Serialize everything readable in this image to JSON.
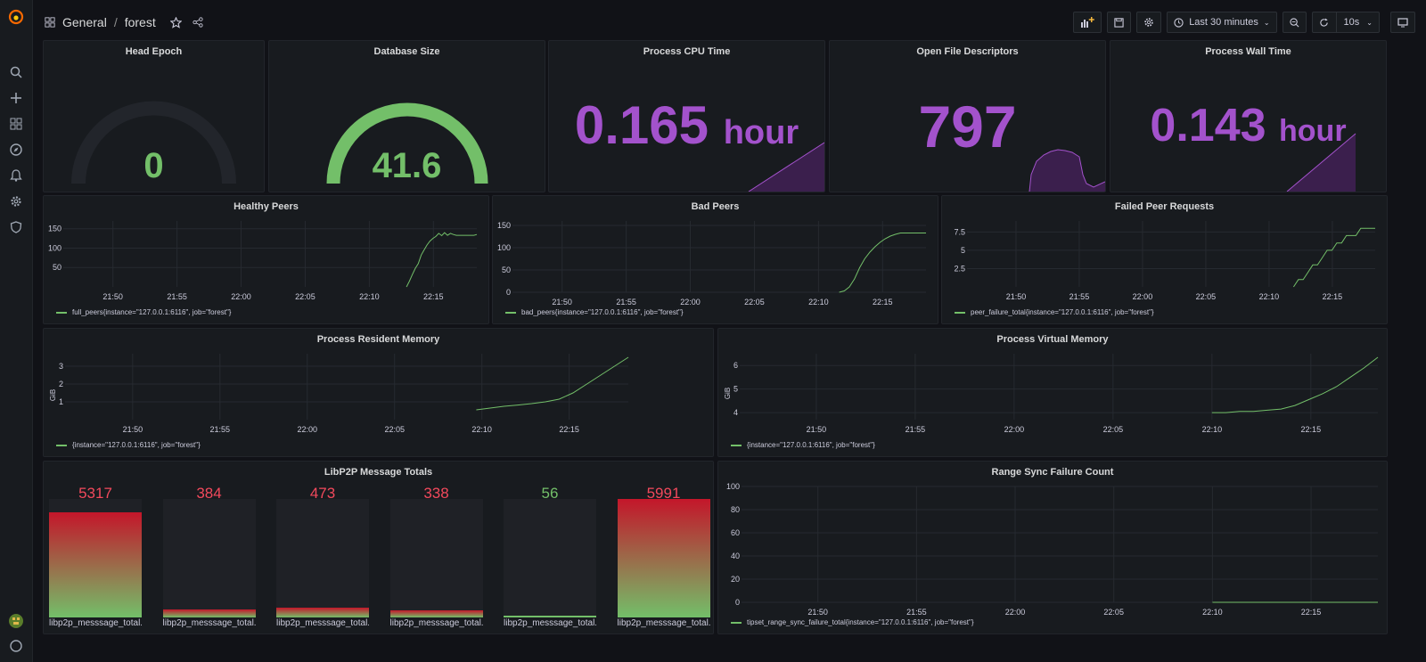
{
  "breadcrumb": {
    "folder": "General",
    "dashboard": "forest",
    "separator": "/"
  },
  "toolbar": {
    "time_range": "Last 30 minutes",
    "refresh": "10s"
  },
  "sidebar": {
    "items": [
      "search-icon",
      "plus-icon",
      "dashboards-icon",
      "explore-icon",
      "alerting-icon",
      "config-icon",
      "shield-icon"
    ]
  },
  "panels": {
    "head_epoch": {
      "title": "Head Epoch",
      "value": "0"
    },
    "database_size": {
      "title": "Database Size",
      "value": "41.6",
      "gauge_fraction": 0.95
    },
    "cpu_time": {
      "title": "Process CPU Time",
      "value": "0.165",
      "unit": "hour"
    },
    "open_fds": {
      "title": "Open File Descriptors",
      "value": "797"
    },
    "wall_time": {
      "title": "Process Wall Time",
      "value": "0.143",
      "unit": "hour"
    },
    "healthy_peers": {
      "title": "Healthy Peers",
      "legend": "full_peers{instance=\"127.0.0.1:6116\", job=\"forest\"}"
    },
    "bad_peers": {
      "title": "Bad Peers",
      "legend": "bad_peers{instance=\"127.0.0.1:6116\", job=\"forest\"}"
    },
    "failed_peer_requests": {
      "title": "Failed Peer Requests",
      "legend": "peer_failure_total{instance=\"127.0.0.1:6116\", job=\"forest\"}"
    },
    "resident_memory": {
      "title": "Process Resident Memory",
      "legend": "{instance=\"127.0.0.1:6116\", job=\"forest\"}",
      "ylabel": "GiB"
    },
    "virtual_memory": {
      "title": "Process Virtual Memory",
      "legend": "{instance=\"127.0.0.1:6116\", job=\"forest\"}",
      "ylabel": "GiB"
    },
    "libp2p": {
      "title": "LibP2P Message Totals"
    },
    "range_sync": {
      "title": "Range Sync Failure Count",
      "legend": "tipset_range_sync_failure_total{instance=\"127.0.0.1:6116\", job=\"forest\"}"
    }
  },
  "chart_data": [
    {
      "id": "healthy_peers",
      "type": "line",
      "x_ticks": [
        "21:50",
        "21:55",
        "22:00",
        "22:05",
        "22:10",
        "22:15"
      ],
      "y_ticks": [
        50,
        100,
        150
      ],
      "ylim": [
        0,
        170
      ],
      "color": "#73bf69",
      "x": [
        0,
        1,
        2,
        3,
        4,
        5,
        6,
        7,
        8,
        9,
        10,
        11,
        12,
        13,
        14,
        15,
        16,
        17,
        18,
        19,
        20,
        21,
        22,
        23,
        24
      ],
      "y": [
        0,
        15,
        32,
        48,
        60,
        82,
        95,
        108,
        118,
        125,
        130,
        138,
        132,
        140,
        133,
        138,
        135,
        133,
        133,
        133,
        133,
        133,
        133,
        133,
        135
      ],
      "x_start": 0.83,
      "x_end": 1.0
    },
    {
      "id": "bad_peers",
      "type": "line",
      "x_ticks": [
        "21:50",
        "21:55",
        "22:00",
        "22:05",
        "22:10",
        "22:15"
      ],
      "y_ticks": [
        0,
        50,
        100,
        150
      ],
      "ylim": [
        0,
        160
      ],
      "color": "#73bf69",
      "x": [
        0,
        1,
        2,
        3,
        4,
        5,
        6,
        7,
        8,
        9,
        10,
        11,
        12,
        13,
        14,
        15,
        16,
        17
      ],
      "y": [
        0,
        3,
        12,
        30,
        55,
        75,
        90,
        102,
        112,
        120,
        126,
        130,
        133,
        133,
        133,
        133,
        133,
        133
      ],
      "x_start": 0.79,
      "x_end": 1.0
    },
    {
      "id": "failed_peer_requests",
      "type": "line",
      "x_ticks": [
        "21:50",
        "21:55",
        "22:00",
        "22:05",
        "22:10",
        "22:15"
      ],
      "y_ticks": [
        2.5,
        5,
        7.5
      ],
      "ylim": [
        0,
        9
      ],
      "color": "#73bf69",
      "x": [
        0,
        1,
        2,
        3,
        4,
        5,
        6,
        7,
        8,
        9,
        10,
        11,
        12,
        13,
        14,
        15,
        16,
        17
      ],
      "y": [
        0,
        1,
        1,
        2,
        3,
        3,
        4,
        5,
        5,
        6,
        6,
        7,
        7,
        7,
        8,
        8,
        8,
        8
      ],
      "x_start": 0.8,
      "x_end": 1.0
    },
    {
      "id": "resident_memory",
      "type": "line",
      "x_ticks": [
        "21:50",
        "21:55",
        "22:00",
        "22:05",
        "22:10",
        "22:15"
      ],
      "y_ticks": [
        1,
        2,
        3
      ],
      "ylim": [
        0,
        3.7
      ],
      "color": "#73bf69",
      "x": [
        0,
        1,
        2,
        3,
        4,
        5,
        6,
        7,
        8,
        9,
        10,
        11
      ],
      "y": [
        0.55,
        0.65,
        0.75,
        0.82,
        0.9,
        1.0,
        1.15,
        1.5,
        2.0,
        2.5,
        3.0,
        3.5
      ],
      "x_start": 0.73,
      "x_end": 1.0
    },
    {
      "id": "virtual_memory",
      "type": "line",
      "x_ticks": [
        "21:50",
        "21:55",
        "22:00",
        "22:05",
        "22:10",
        "22:15"
      ],
      "y_ticks": [
        4,
        5,
        6
      ],
      "ylim": [
        3.7,
        6.5
      ],
      "color": "#73bf69",
      "x": [
        0,
        1,
        2,
        3,
        4,
        5,
        6,
        7,
        8,
        9,
        10,
        11,
        12
      ],
      "y": [
        4.0,
        4.0,
        4.05,
        4.05,
        4.1,
        4.15,
        4.3,
        4.55,
        4.8,
        5.1,
        5.5,
        5.9,
        6.35
      ],
      "x_start": 0.74,
      "x_end": 1.0
    },
    {
      "id": "range_sync",
      "type": "line",
      "x_ticks": [
        "21:50",
        "21:55",
        "22:00",
        "22:05",
        "22:10",
        "22:15"
      ],
      "y_ticks": [
        0,
        20,
        40,
        60,
        80,
        100
      ],
      "ylim": [
        0,
        100
      ],
      "color": "#73bf69",
      "x": [
        0,
        1
      ],
      "y": [
        0,
        0
      ],
      "x_start": 0.74,
      "x_end": 1.0
    },
    {
      "id": "libp2p",
      "type": "bar",
      "categories": [
        "libp2p_messsage_total...",
        "libp2p_messsage_total...",
        "libp2p_messsage_total...",
        "libp2p_messsage_total...",
        "libp2p_messsage_total...",
        "libp2p_messsage_total..."
      ],
      "values": [
        5317,
        384,
        473,
        338,
        56,
        5991
      ],
      "value_colors": [
        "#f2495c",
        "#f2495c",
        "#f2495c",
        "#f2495c",
        "#73bf69",
        "#f2495c"
      ],
      "max": 5991
    }
  ]
}
